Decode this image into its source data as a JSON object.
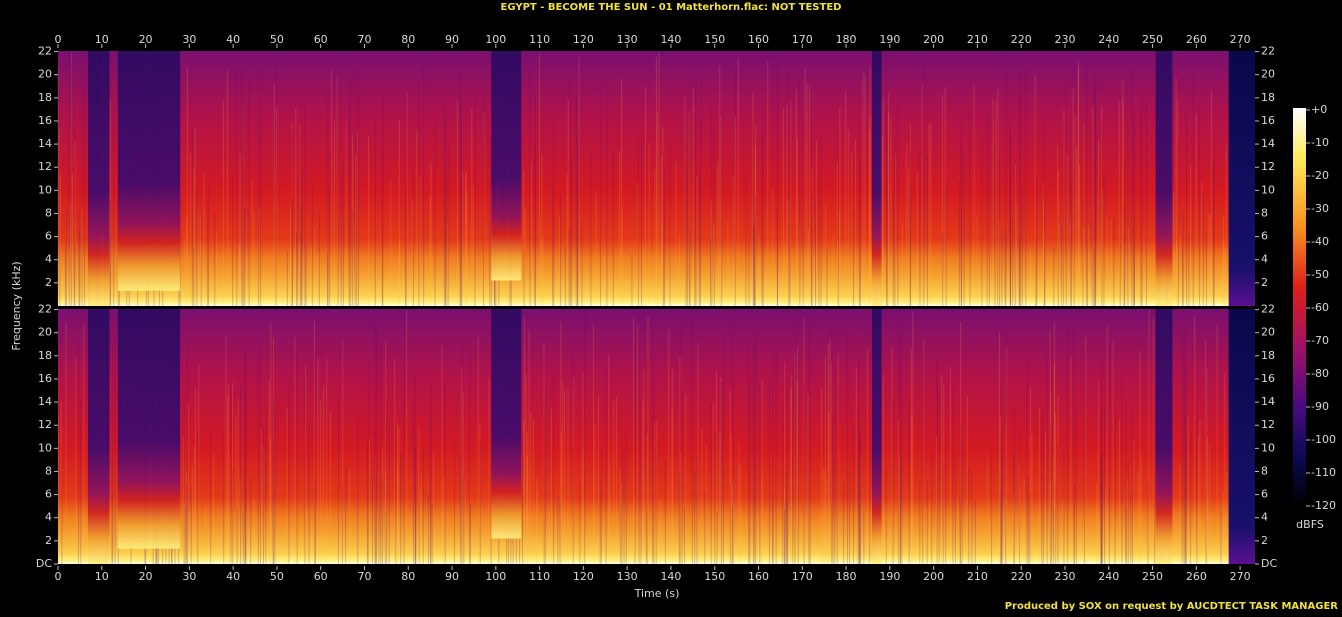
{
  "chart_data": {
    "type": "spectrogram",
    "title": "EGYPT - BECOME THE SUN - 01 Matterhorn.flac: NOT TESTED",
    "xlabel": "Time (s)",
    "ylabel": "Frequency (kHz)",
    "xlim": [
      0,
      273.4
    ],
    "xticks": [
      0,
      10,
      20,
      30,
      40,
      50,
      60,
      70,
      80,
      90,
      100,
      110,
      120,
      130,
      140,
      150,
      160,
      170,
      180,
      190,
      200,
      210,
      220,
      230,
      240,
      250,
      260,
      270
    ],
    "channels": [
      {
        "ylim": [
          0,
          22.05
        ],
        "yticks": [
          2,
          4,
          6,
          8,
          10,
          12,
          14,
          16,
          18,
          20,
          22
        ]
      },
      {
        "ylim": [
          0,
          22.05
        ],
        "yticks": [
          {
            "value": 0,
            "label": "DC"
          },
          2,
          4,
          6,
          8,
          10,
          12,
          14,
          16,
          18,
          20,
          22
        ]
      }
    ],
    "colorbar": {
      "label": "dBFS",
      "clim": [
        -120,
        0
      ],
      "ticks": [
        {
          "value": 0,
          "label": "+0"
        },
        -10,
        -20,
        -30,
        -40,
        -50,
        -60,
        -70,
        -80,
        -90,
        -100,
        -110,
        -120
      ]
    },
    "footer": "Produced by SOX on request by AUCDTECT TASK MANAGER"
  }
}
